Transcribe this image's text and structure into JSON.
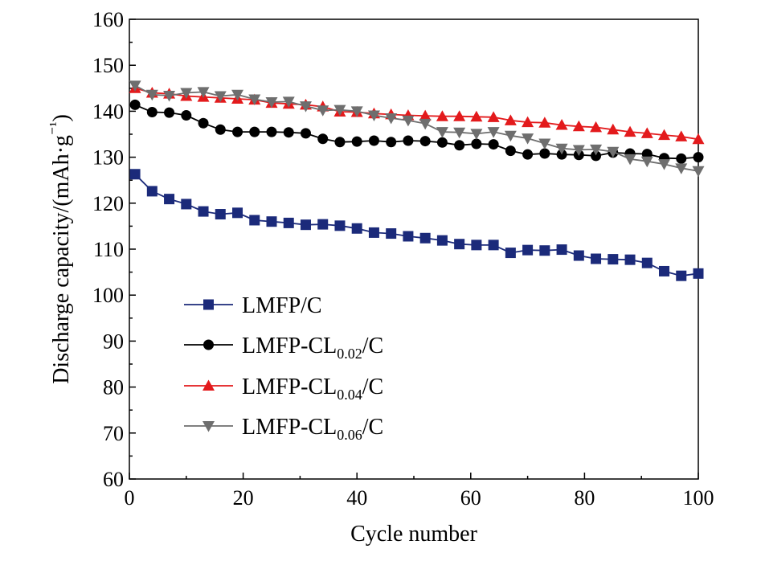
{
  "chart_data": {
    "type": "line",
    "title": "",
    "xlabel": "Cycle number",
    "ylabel": "Discharge capacity/(mAh·g⁻¹)",
    "xlim": [
      0,
      100
    ],
    "ylim": [
      60,
      160
    ],
    "xticks": [
      "0",
      "20",
      "40",
      "60",
      "80",
      "100"
    ],
    "yticks": [
      "60",
      "70",
      "80",
      "90",
      "100",
      "110",
      "120",
      "130",
      "140",
      "150",
      "160"
    ],
    "grid": false,
    "legend_position": "lower-left",
    "x": [
      1,
      4,
      7,
      10,
      13,
      16,
      19,
      22,
      25,
      28,
      31,
      34,
      37,
      40,
      43,
      46,
      49,
      52,
      55,
      58,
      61,
      64,
      67,
      70,
      73,
      76,
      79,
      82,
      85,
      88,
      91,
      94,
      97,
      100
    ],
    "series": [
      {
        "name": "LMFP/C",
        "legend_base": "LMFP/C",
        "legend_sub": "",
        "legend_suffix": "",
        "color": "#1b2a7a",
        "marker": "square",
        "values": [
          126.3,
          122.6,
          120.9,
          119.8,
          118.2,
          117.6,
          117.9,
          116.3,
          116.0,
          115.7,
          115.3,
          115.4,
          115.1,
          114.5,
          113.6,
          113.4,
          112.8,
          112.4,
          111.9,
          111.1,
          110.9,
          110.9,
          109.2,
          109.8,
          109.7,
          109.9,
          108.6,
          107.9,
          107.8,
          107.7,
          107.0,
          105.2,
          104.2,
          104.7
        ]
      },
      {
        "name": "LMFP-CL0.02/C",
        "legend_base": "LMFP-CL",
        "legend_sub": "0.02",
        "legend_suffix": "/C",
        "color": "#000000",
        "marker": "circle",
        "values": [
          141.4,
          139.8,
          139.7,
          139.1,
          137.4,
          136.0,
          135.5,
          135.5,
          135.5,
          135.4,
          135.2,
          134.0,
          133.3,
          133.4,
          133.6,
          133.3,
          133.6,
          133.5,
          133.2,
          132.6,
          132.9,
          132.8,
          131.4,
          130.6,
          130.8,
          130.6,
          130.5,
          130.3,
          131.0,
          130.8,
          130.7,
          129.8,
          129.7,
          130.0
        ]
      },
      {
        "name": "LMFP-CL0.04/C",
        "legend_base": "LMFP-CL",
        "legend_sub": "0.04",
        "legend_suffix": "/C",
        "color": "#e31a1c",
        "marker": "triangle-up",
        "values": [
          145.0,
          144.0,
          143.8,
          143.3,
          143.1,
          142.9,
          142.7,
          142.5,
          141.8,
          141.6,
          141.4,
          141.0,
          139.9,
          139.8,
          139.5,
          139.3,
          139.1,
          139.0,
          138.9,
          138.9,
          138.8,
          138.7,
          138.0,
          137.6,
          137.5,
          137.0,
          136.7,
          136.5,
          136.0,
          135.5,
          135.2,
          134.8,
          134.5,
          133.9
        ]
      },
      {
        "name": "LMFP-CL0.06/C",
        "legend_base": "LMFP-CL",
        "legend_sub": "0.06",
        "legend_suffix": "/C",
        "color": "#6e6e6e",
        "marker": "triangle-down",
        "values": [
          145.6,
          143.6,
          143.4,
          144.0,
          144.2,
          143.3,
          143.6,
          142.6,
          142.0,
          142.1,
          141.1,
          140.2,
          140.3,
          140.0,
          139.1,
          138.5,
          138.0,
          137.3,
          135.5,
          135.4,
          135.1,
          135.5,
          134.7,
          134.1,
          133.0,
          131.9,
          131.6,
          131.7,
          131.2,
          129.6,
          129.1,
          128.5,
          127.6,
          127.0
        ]
      }
    ]
  }
}
